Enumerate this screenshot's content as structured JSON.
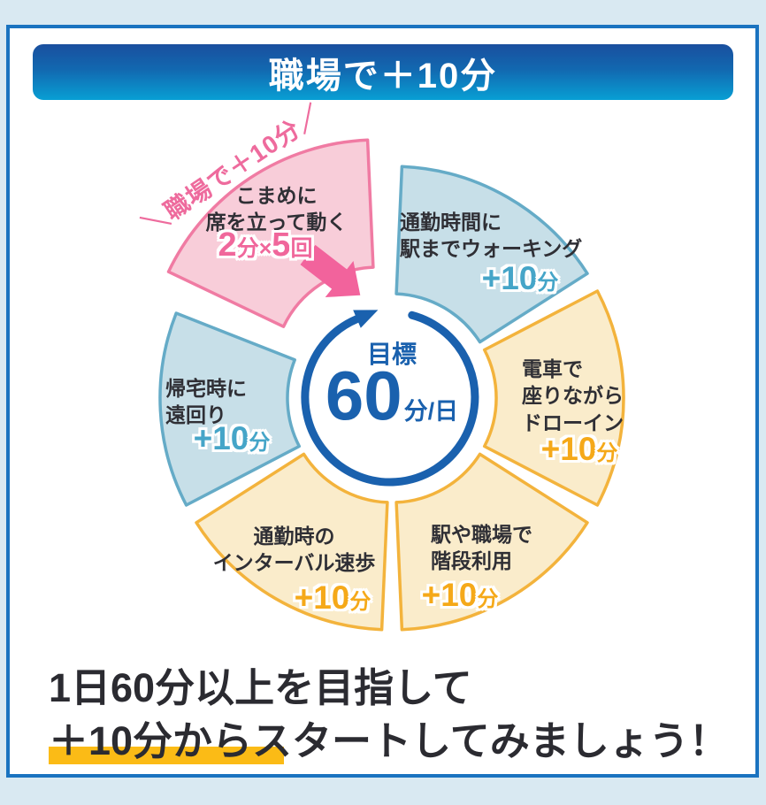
{
  "banner": {
    "title": "職場で＋10分"
  },
  "wheel": {
    "center": {
      "goal_label": "目標",
      "value": "60",
      "unit": "分/日"
    },
    "highlight": {
      "rotated_label": "＼職場で＋10分／",
      "line1": "こまめに",
      "line2": "席を立って動く",
      "v_num1": "2",
      "v_unit1": "分×",
      "v_num2": "5",
      "v_unit2": "回"
    },
    "segments": [
      {
        "line1": "通勤時間に",
        "line2": "駅までウォーキング",
        "value": "+10",
        "unit": "分"
      },
      {
        "line1": "電車で",
        "line2": "座りながら",
        "line3": "ドローイン",
        "value": "+10",
        "unit": "分"
      },
      {
        "line1": "駅や職場で",
        "line2": "階段利用",
        "value": "+10",
        "unit": "分"
      },
      {
        "line1": "通勤時の",
        "line2": "インターバル速歩",
        "value": "+10",
        "unit": "分"
      },
      {
        "line1": "帰宅時に",
        "line2": "遠回り",
        "value": "+10",
        "unit": "分"
      }
    ]
  },
  "caption": {
    "line1": "1日60分以上を目指して",
    "line2": "＋10分からスタートしてみましょう！"
  },
  "colors": {
    "background": "#d9e9f2",
    "card_border": "#1a73c0",
    "header_gradient_top": "#1a4f9e",
    "header_gradient_bottom": "#089fd4",
    "pink_fill": "#f8cdd9",
    "pink_border": "#f07ba3",
    "pink_accent": "#f0679b",
    "blue_fill": "#c7dfe8",
    "blue_border": "#65abc7",
    "blue_accent": "#45a5c8",
    "yellow_fill": "#faeccb",
    "yellow_border": "#f3b33c",
    "yellow_accent": "#f5a919",
    "ring_blue": "#1a61ae",
    "marker_yellow": "#fbbb16"
  }
}
